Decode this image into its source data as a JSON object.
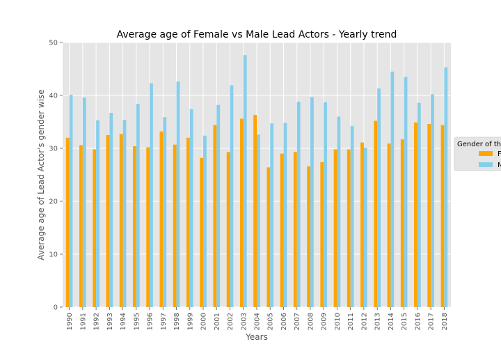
{
  "chart_data": {
    "type": "bar",
    "title": "Average age of Female vs Male Lead Actors - Yearly trend",
    "xlabel": "Years",
    "ylabel": "Average age of Lead Actor's gender wise",
    "ylim": [
      0,
      50
    ],
    "yticks": [
      0,
      10,
      20,
      30,
      40,
      50
    ],
    "grid": true,
    "legend_position": "right",
    "legend_title": "Gender of th",
    "categories": [
      "1990",
      "1991",
      "1992",
      "1993",
      "1994",
      "1995",
      "1996",
      "1997",
      "1998",
      "1999",
      "2000",
      "2001",
      "2002",
      "2003",
      "2004",
      "2005",
      "2006",
      "2007",
      "2008",
      "2009",
      "2010",
      "2011",
      "2012",
      "2013",
      "2014",
      "2015",
      "2016",
      "2017",
      "2018"
    ],
    "series": [
      {
        "name": "F",
        "color": "#FFA500",
        "values": [
          32.0,
          30.6,
          29.8,
          32.5,
          32.7,
          30.4,
          30.2,
          33.2,
          30.7,
          32.0,
          28.2,
          34.4,
          29.3,
          35.6,
          36.3,
          26.4,
          29.0,
          29.3,
          26.6,
          27.4,
          29.8,
          29.8,
          31.1,
          35.2,
          30.9,
          31.7,
          34.9,
          34.6,
          34.4
        ]
      },
      {
        "name": "M",
        "color": "#87CEEB",
        "values": [
          40.1,
          39.6,
          35.3,
          36.7,
          35.4,
          38.4,
          42.3,
          35.9,
          42.6,
          37.4,
          32.4,
          38.2,
          41.9,
          47.6,
          32.6,
          34.7,
          34.8,
          38.8,
          39.7,
          38.7,
          36.0,
          34.2,
          30.1,
          41.3,
          44.5,
          43.5,
          38.6,
          40.2,
          45.3
        ]
      }
    ]
  }
}
